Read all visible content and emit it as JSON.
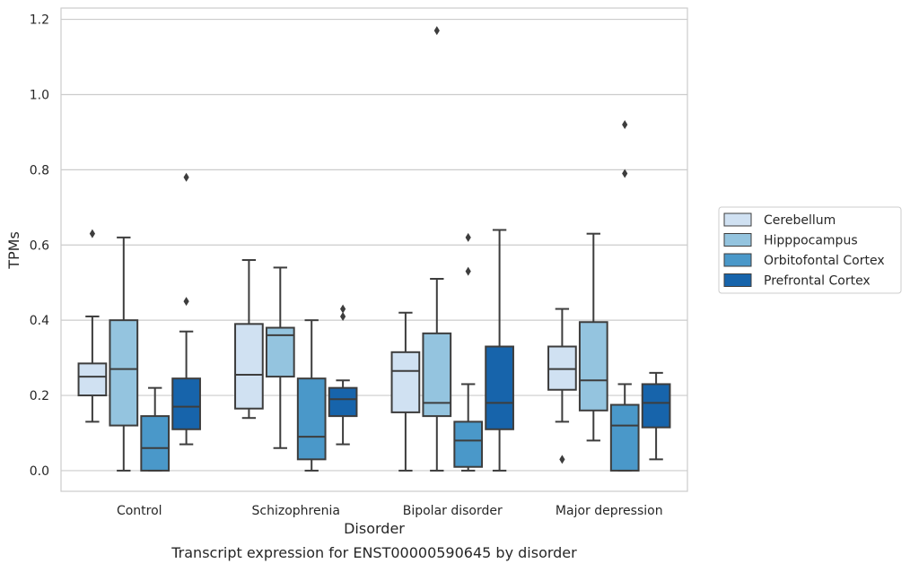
{
  "chart_data": {
    "type": "box",
    "title": "Transcript expression for ENST00000590645 by disorder",
    "xlabel": "Disorder",
    "ylabel": "TPMs",
    "ylim": [
      -0.055,
      1.23
    ],
    "yticks": [
      0.0,
      0.2,
      0.4,
      0.6,
      0.8,
      1.0,
      1.2
    ],
    "ytick_labels": [
      "0.0",
      "0.2",
      "0.4",
      "0.6",
      "0.8",
      "1.0",
      "1.2"
    ],
    "grid": "horizontal",
    "legend_position": "right",
    "categories": [
      "Control",
      "Schizophrenia",
      "Bipolar disorder",
      "Major depression"
    ],
    "series": [
      {
        "name": "Cerebellum",
        "color": "#d0e1f2",
        "boxes": [
          {
            "whislo": 0.13,
            "q1": 0.2,
            "med": 0.25,
            "q3": 0.285,
            "whishi": 0.41,
            "fliers": [
              0.63
            ]
          },
          {
            "whislo": 0.14,
            "q1": 0.165,
            "med": 0.255,
            "q3": 0.39,
            "whishi": 0.56,
            "fliers": []
          },
          {
            "whislo": 0.0,
            "q1": 0.155,
            "med": 0.265,
            "q3": 0.315,
            "whishi": 0.42,
            "fliers": []
          },
          {
            "whislo": 0.13,
            "q1": 0.215,
            "med": 0.27,
            "q3": 0.33,
            "whishi": 0.43,
            "fliers": [
              0.03
            ]
          }
        ]
      },
      {
        "name": "Hipppocampus",
        "color": "#94c4df",
        "boxes": [
          {
            "whislo": 0.0,
            "q1": 0.12,
            "med": 0.27,
            "q3": 0.4,
            "whishi": 0.62,
            "fliers": []
          },
          {
            "whislo": 0.06,
            "q1": 0.25,
            "med": 0.36,
            "q3": 0.38,
            "whishi": 0.54,
            "fliers": []
          },
          {
            "whislo": 0.0,
            "q1": 0.145,
            "med": 0.18,
            "q3": 0.365,
            "whishi": 0.51,
            "fliers": [
              1.17
            ]
          },
          {
            "whislo": 0.08,
            "q1": 0.16,
            "med": 0.24,
            "q3": 0.395,
            "whishi": 0.63,
            "fliers": []
          }
        ]
      },
      {
        "name": "Orbitofontal Cortex",
        "color": "#4a98c9",
        "boxes": [
          {
            "whislo": 0.0,
            "q1": 0.0,
            "med": 0.06,
            "q3": 0.145,
            "whishi": 0.22,
            "fliers": []
          },
          {
            "whislo": 0.0,
            "q1": 0.03,
            "med": 0.09,
            "q3": 0.245,
            "whishi": 0.4,
            "fliers": []
          },
          {
            "whislo": 0.0,
            "q1": 0.01,
            "med": 0.08,
            "q3": 0.13,
            "whishi": 0.23,
            "fliers": [
              0.53,
              0.62
            ]
          },
          {
            "whislo": 0.0,
            "q1": 0.0,
            "med": 0.12,
            "q3": 0.175,
            "whishi": 0.23,
            "fliers": [
              0.79,
              0.92
            ]
          }
        ]
      },
      {
        "name": "Prefrontal Cortex",
        "color": "#1764ab",
        "boxes": [
          {
            "whislo": 0.07,
            "q1": 0.11,
            "med": 0.17,
            "q3": 0.245,
            "whishi": 0.37,
            "fliers": [
              0.45,
              0.78
            ]
          },
          {
            "whislo": 0.07,
            "q1": 0.145,
            "med": 0.19,
            "q3": 0.22,
            "whishi": 0.24,
            "fliers": [
              0.41,
              0.43
            ]
          },
          {
            "whislo": 0.0,
            "q1": 0.11,
            "med": 0.18,
            "q3": 0.33,
            "whishi": 0.64,
            "fliers": []
          },
          {
            "whislo": 0.03,
            "q1": 0.115,
            "med": 0.18,
            "q3": 0.23,
            "whishi": 0.26,
            "fliers": []
          }
        ]
      }
    ]
  }
}
